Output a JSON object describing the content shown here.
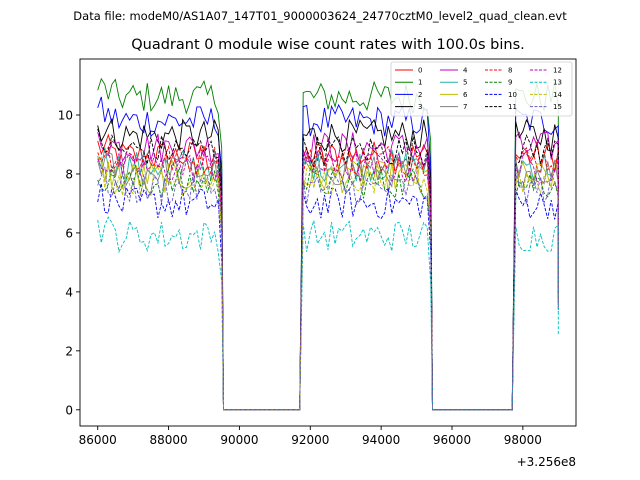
{
  "chart_data": {
    "type": "line",
    "suptitle": "Data file: modeM0/AS1A07_147T01_9000003624_24770cztM0_level2_quad_clean.evt",
    "title": "Quadrant 0 module wise count rates with 100.0s bins.",
    "xlabel": "",
    "ylabel": "",
    "x_offset_label": "+3.256e8",
    "xlim": [
      85500,
      99500
    ],
    "ylim": [
      -0.55,
      11.9
    ],
    "xticks": [
      86000,
      88000,
      90000,
      92000,
      94000,
      96000,
      98000
    ],
    "xtick_labels": [
      "86000",
      "88000",
      "90000",
      "92000",
      "94000",
      "96000",
      "98000"
    ],
    "yticks": [
      0,
      2,
      4,
      6,
      8,
      10
    ],
    "ytick_labels": [
      "0",
      "2",
      "4",
      "6",
      "8",
      "10"
    ],
    "time_segments": [
      [
        86000,
        89500
      ],
      [
        91800,
        95400
      ],
      [
        97800,
        99000
      ]
    ],
    "gap_level": 0.0,
    "bin_seconds": 100,
    "legend_position": "top-right",
    "series": [
      {
        "name": "0",
        "color": "#ff0000",
        "dash": "solid",
        "level": 8.6
      },
      {
        "name": "1",
        "color": "#008000",
        "dash": "solid",
        "level": 10.6
      },
      {
        "name": "2",
        "color": "#0000ff",
        "dash": "solid",
        "level": 9.8
      },
      {
        "name": "3",
        "color": "#000000",
        "dash": "solid",
        "level": 9.3
      },
      {
        "name": "4",
        "color": "#bf00bf",
        "dash": "solid",
        "level": 8.9
      },
      {
        "name": "5",
        "color": "#20b2aa",
        "dash": "solid",
        "level": 8.3
      },
      {
        "name": "6",
        "color": "#bfbf00",
        "dash": "solid",
        "level": 7.9
      },
      {
        "name": "7",
        "color": "#808080",
        "dash": "solid",
        "level": 8.1
      },
      {
        "name": "8",
        "color": "#ff0000",
        "dash": "dashed",
        "level": 8.5
      },
      {
        "name": "9",
        "color": "#008000",
        "dash": "dashed",
        "level": 7.7
      },
      {
        "name": "10",
        "color": "#0000ff",
        "dash": "dashed",
        "level": 7.0
      },
      {
        "name": "11",
        "color": "#000000",
        "dash": "dashed",
        "level": 8.8
      },
      {
        "name": "12",
        "color": "#bf00bf",
        "dash": "dashed",
        "level": 8.2
      },
      {
        "name": "13",
        "color": "#00bfbf",
        "dash": "dashed",
        "level": 5.9
      },
      {
        "name": "14",
        "color": "#bfbf00",
        "dash": "dashed",
        "level": 7.8
      },
      {
        "name": "15",
        "color": "#6a5acd",
        "dash": "dashed",
        "level": 7.5
      }
    ]
  }
}
